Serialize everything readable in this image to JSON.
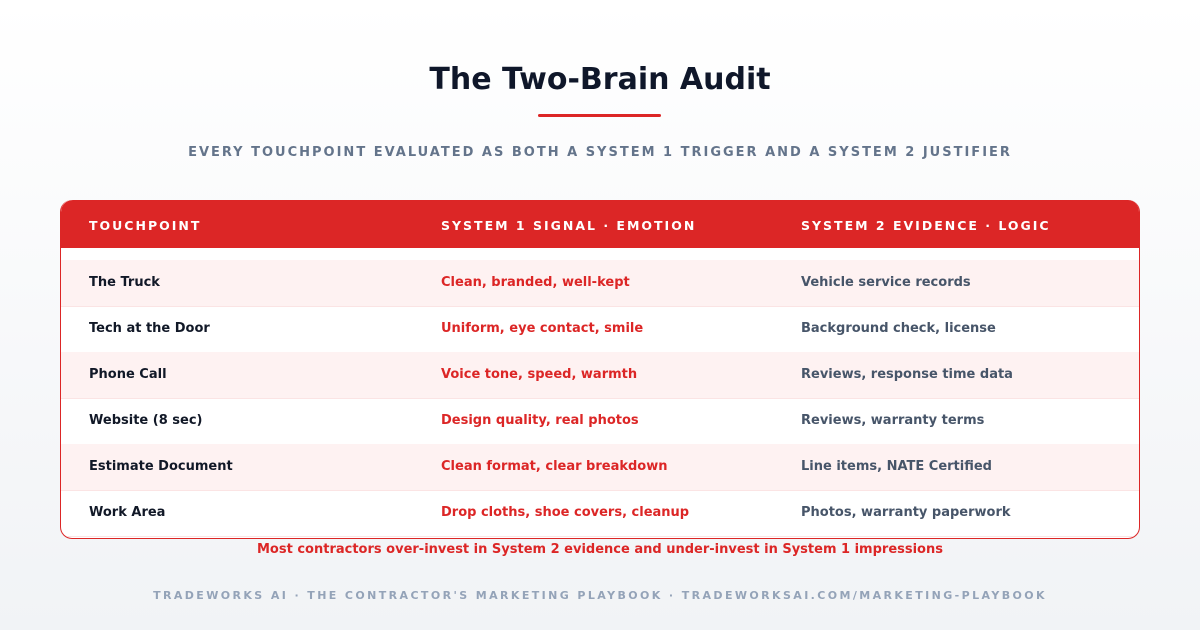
{
  "header": {
    "title": "The Two-Brain Audit",
    "subtitle": "EVERY TOUCHPOINT EVALUATED AS BOTH A SYSTEM 1 TRIGGER AND A SYSTEM 2 JUSTIFIER"
  },
  "table": {
    "columns": [
      "TOUCHPOINT",
      "SYSTEM 1 SIGNAL · EMOTION",
      "SYSTEM 2 EVIDENCE · LOGIC"
    ],
    "rows": [
      [
        "The Truck",
        "Clean, branded, well-kept",
        "Vehicle service records"
      ],
      [
        "Tech at the Door",
        "Uniform, eye contact, smile",
        "Background check, license"
      ],
      [
        "Phone Call",
        "Voice tone, speed, warmth",
        "Reviews, response time data"
      ],
      [
        "Website (8 sec)",
        "Design quality, real photos",
        "Reviews, warranty terms"
      ],
      [
        "Estimate Document",
        "Clean format, clear breakdown",
        "Line items, NATE Certified"
      ],
      [
        "Work Area",
        "Drop cloths, shoe covers, cleanup",
        "Photos, warranty paperwork"
      ]
    ]
  },
  "note": "Most contractors over-invest in System 2 evidence and under-invest in System 1 impressions",
  "footer": "TRADEWORKS AI · THE CONTRACTOR'S MARKETING PLAYBOOK · TRADEWORKSAI.COM/MARKETING-PLAYBOOK"
}
